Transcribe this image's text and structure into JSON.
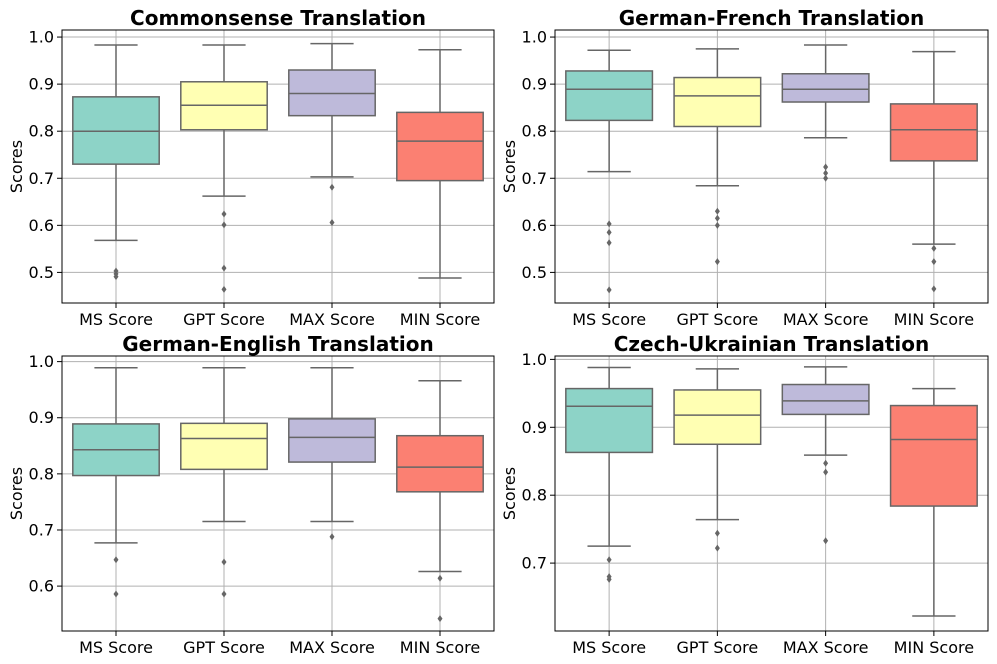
{
  "colors": {
    "box_fills": [
      "#8dd3c7",
      "#ffffb3",
      "#bebada",
      "#fb8072"
    ],
    "edge": "#666666",
    "grid": "#b0b0b0",
    "frame": "#000000"
  },
  "chart_data": [
    {
      "type": "box",
      "title": "Commonsense Translation",
      "ylabel": "Scores",
      "xlabel": "",
      "categories": [
        "MS Score",
        "GPT Score",
        "MAX Score",
        "MIN Score"
      ],
      "ylim": [
        0.435,
        1.015
      ],
      "yticks": [
        "0.5",
        "0.6",
        "0.7",
        "0.8",
        "0.9",
        "1.0"
      ],
      "grid": true,
      "boxes": [
        {
          "q1": 0.73,
          "median": 0.8,
          "q3": 0.873,
          "whisker_low": 0.568,
          "whisker_high": 0.983,
          "outliers": [
            0.503,
            0.497,
            0.491
          ]
        },
        {
          "q1": 0.803,
          "median": 0.855,
          "q3": 0.905,
          "whisker_low": 0.662,
          "whisker_high": 0.983,
          "outliers": [
            0.624,
            0.601,
            0.509,
            0.464
          ]
        },
        {
          "q1": 0.833,
          "median": 0.88,
          "q3": 0.93,
          "whisker_low": 0.703,
          "whisker_high": 0.986,
          "outliers": [
            0.681,
            0.606
          ]
        },
        {
          "q1": 0.695,
          "median": 0.779,
          "q3": 0.84,
          "whisker_low": 0.488,
          "whisker_high": 0.973,
          "outliers": []
        }
      ]
    },
    {
      "type": "box",
      "title": "German-French Translation",
      "ylabel": "Scores",
      "xlabel": "",
      "categories": [
        "MS Score",
        "GPT Score",
        "MAX Score",
        "MIN Score"
      ],
      "ylim": [
        0.435,
        1.015
      ],
      "yticks": [
        "0.5",
        "0.6",
        "0.7",
        "0.8",
        "0.9",
        "1.0"
      ],
      "grid": true,
      "boxes": [
        {
          "q1": 0.823,
          "median": 0.889,
          "q3": 0.928,
          "whisker_low": 0.714,
          "whisker_high": 0.972,
          "outliers": [
            0.603,
            0.585,
            0.563,
            0.463
          ]
        },
        {
          "q1": 0.81,
          "median": 0.875,
          "q3": 0.914,
          "whisker_low": 0.684,
          "whisker_high": 0.975,
          "outliers": [
            0.63,
            0.615,
            0.6,
            0.523
          ]
        },
        {
          "q1": 0.862,
          "median": 0.889,
          "q3": 0.922,
          "whisker_low": 0.786,
          "whisker_high": 0.983,
          "outliers": [
            0.724,
            0.711,
            0.7
          ]
        },
        {
          "q1": 0.737,
          "median": 0.803,
          "q3": 0.858,
          "whisker_low": 0.56,
          "whisker_high": 0.969,
          "outliers": [
            0.551,
            0.523,
            0.465
          ]
        }
      ]
    },
    {
      "type": "box",
      "title": "German-English Translation",
      "ylabel": "Scores",
      "xlabel": "",
      "categories": [
        "MS Score",
        "GPT Score",
        "MAX Score",
        "MIN Score"
      ],
      "ylim": [
        0.52,
        1.01
      ],
      "yticks": [
        "0.6",
        "0.7",
        "0.8",
        "0.9",
        "1.0"
      ],
      "grid": true,
      "boxes": [
        {
          "q1": 0.797,
          "median": 0.843,
          "q3": 0.889,
          "whisker_low": 0.677,
          "whisker_high": 0.989,
          "outliers": [
            0.647,
            0.586
          ]
        },
        {
          "q1": 0.808,
          "median": 0.863,
          "q3": 0.89,
          "whisker_low": 0.715,
          "whisker_high": 0.989,
          "outliers": [
            0.643,
            0.586
          ]
        },
        {
          "q1": 0.821,
          "median": 0.865,
          "q3": 0.898,
          "whisker_low": 0.715,
          "whisker_high": 0.989,
          "outliers": [
            0.688
          ]
        },
        {
          "q1": 0.768,
          "median": 0.812,
          "q3": 0.868,
          "whisker_low": 0.626,
          "whisker_high": 0.966,
          "outliers": [
            0.614,
            0.542
          ]
        }
      ]
    },
    {
      "type": "box",
      "title": "Czech-Ukrainian Translation",
      "ylabel": "Scores",
      "xlabel": "",
      "categories": [
        "MS Score",
        "GPT Score",
        "MAX Score",
        "MIN Score"
      ],
      "ylim": [
        0.6,
        1.005
      ],
      "yticks": [
        "0.7",
        "0.8",
        "0.9",
        "1.0"
      ],
      "grid": true,
      "boxes": [
        {
          "q1": 0.863,
          "median": 0.931,
          "q3": 0.957,
          "whisker_low": 0.725,
          "whisker_high": 0.988,
          "outliers": [
            0.705,
            0.68,
            0.676
          ]
        },
        {
          "q1": 0.875,
          "median": 0.918,
          "q3": 0.955,
          "whisker_low": 0.764,
          "whisker_high": 0.986,
          "outliers": [
            0.744,
            0.722
          ]
        },
        {
          "q1": 0.919,
          "median": 0.939,
          "q3": 0.963,
          "whisker_low": 0.859,
          "whisker_high": 0.989,
          "outliers": [
            0.847,
            0.834,
            0.733
          ]
        },
        {
          "q1": 0.784,
          "median": 0.882,
          "q3": 0.932,
          "whisker_low": 0.622,
          "whisker_high": 0.957,
          "outliers": []
        }
      ]
    }
  ]
}
